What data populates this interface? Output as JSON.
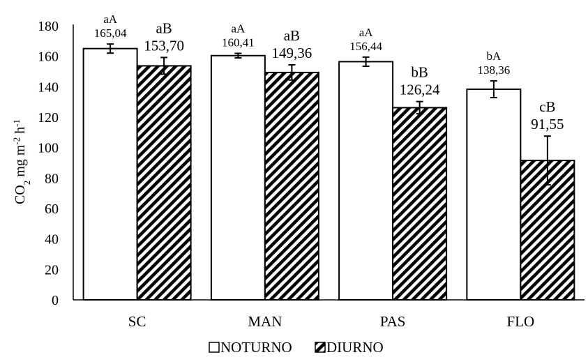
{
  "chart_data": {
    "type": "bar",
    "ylabel": "CO₂ mg m⁻² h⁻¹",
    "ylim": [
      0,
      180
    ],
    "yticks": [
      0,
      20,
      40,
      60,
      80,
      100,
      120,
      140,
      160,
      180
    ],
    "categories": [
      "SC",
      "MAN",
      "PAS",
      "FLO"
    ],
    "series": [
      {
        "name": "NOTURNO",
        "values": [
          165.04,
          160.41,
          156.44,
          138.36
        ],
        "errors": [
          3,
          1.5,
          3,
          5.5
        ],
        "labels": [
          "165,04",
          "160,41",
          "156,44",
          "138,36"
        ],
        "letters": [
          "aA",
          "aA",
          "aA",
          "bA"
        ],
        "fill": "#ffffff"
      },
      {
        "name": "DIURNO",
        "values": [
          153.7,
          149.36,
          126.24,
          91.55
        ],
        "errors": [
          5.5,
          5,
          4,
          16
        ],
        "labels": [
          "153,70",
          "149,36",
          "126,24",
          "91,55"
        ],
        "letters": [
          "aB",
          "aB",
          "bB",
          "cB"
        ],
        "fill": "hatched"
      }
    ],
    "grid": false,
    "legend_position": "bottom"
  }
}
